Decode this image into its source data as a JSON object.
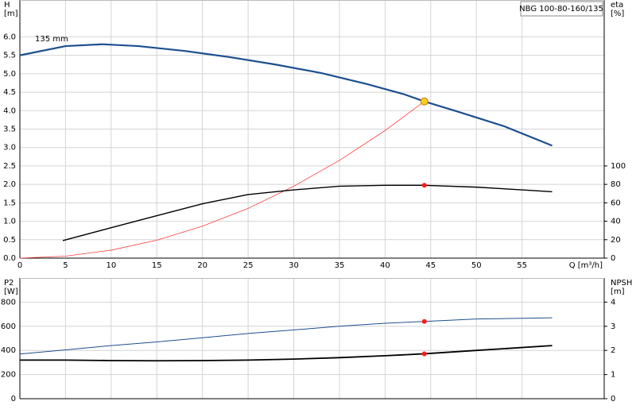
{
  "chart_data": [
    {
      "type": "line",
      "title": "NBG 100-80-160/135",
      "y_label": "H",
      "y_unit": "[m]",
      "y2_label": "eta",
      "y2_unit": "[%]",
      "x_label": "Q [m³/h]",
      "annotation": "135 mm",
      "xlim": [
        0,
        64
      ],
      "xticks": [
        0,
        5,
        10,
        15,
        20,
        25,
        30,
        35,
        40,
        45,
        50,
        55
      ],
      "ylim": [
        0,
        7
      ],
      "yticks": [
        {
          "value": 0,
          "label": "0.0"
        },
        {
          "value": 0.5,
          "label": "0.5"
        },
        {
          "value": 1,
          "label": "1.0"
        },
        {
          "value": 1.5,
          "label": "1.5"
        },
        {
          "value": 2,
          "label": "2.0"
        },
        {
          "value": 2.5,
          "label": "2.5"
        },
        {
          "value": 3,
          "label": "3.0"
        },
        {
          "value": 3.5,
          "label": "3.5"
        },
        {
          "value": 4,
          "label": "4.0"
        },
        {
          "value": 4.5,
          "label": "4.5"
        },
        {
          "value": 5,
          "label": "5.0"
        },
        {
          "value": 5.5,
          "label": "5.5"
        },
        {
          "value": 6,
          "label": "6.0"
        }
      ],
      "y2lim": [
        0,
        280
      ],
      "y2ticks": [
        0,
        20,
        40,
        60,
        80,
        100
      ],
      "grid": true,
      "series": [
        {
          "color": "#1d4f8f",
          "width": 2.2,
          "x": [
            0,
            5,
            9,
            13,
            18,
            23,
            28,
            33,
            38,
            42,
            44.3,
            48,
            53,
            58.3
          ],
          "values": [
            5.5,
            5.75,
            5.8,
            5.75,
            5.62,
            5.45,
            5.25,
            5.02,
            4.72,
            4.45,
            4.25,
            3.97,
            3.58,
            3.05
          ]
        },
        {
          "color": "#ff3b3b",
          "width": 0.8,
          "x": [
            0,
            5,
            10,
            15,
            20,
            25,
            30,
            35,
            40,
            44.3
          ],
          "values": [
            0,
            0.054,
            0.217,
            0.487,
            0.866,
            1.35,
            1.95,
            2.65,
            3.46,
            4.25
          ]
        },
        {
          "color": "#000000",
          "width": 1.4,
          "axis": "y2",
          "x": [
            4.7,
            10,
            15,
            20,
            25,
            30,
            35,
            40,
            44.3,
            50,
            55,
            58.3
          ],
          "values": [
            19,
            33,
            46,
            59,
            69,
            74,
            78,
            79,
            79,
            77,
            74,
            72
          ]
        }
      ],
      "points": [
        {
          "x": 44.3,
          "y": 4.25,
          "color": "#ffcc22"
        },
        {
          "x": 44.3,
          "y": 79,
          "color": "#ff1a1a",
          "axis": "y2"
        }
      ]
    },
    {
      "type": "line",
      "y_label": "P2",
      "y_unit": "[W]",
      "y2_label": "NPSH",
      "y2_unit": "[m]",
      "xlim": [
        0,
        64
      ],
      "xticks": [
        0,
        5,
        10,
        15,
        20,
        25,
        30,
        35,
        40,
        45,
        50,
        55
      ],
      "ylim": [
        0,
        1000
      ],
      "yticks": [
        0,
        200,
        400,
        600,
        800
      ],
      "y2lim": [
        0,
        5
      ],
      "y2ticks": [
        0,
        1,
        2,
        3,
        4
      ],
      "grid": true,
      "series": [
        {
          "color": "#1d4f8f",
          "width": 1,
          "x": [
            0,
            5,
            10,
            15,
            20,
            25,
            30,
            35,
            40,
            44.3,
            50,
            58.3
          ],
          "values": [
            370,
            405,
            440,
            470,
            505,
            540,
            570,
            600,
            625,
            640,
            660,
            670
          ]
        },
        {
          "color": "#000000",
          "width": 1.8,
          "axis": "y2",
          "x": [
            0,
            5,
            10,
            15,
            20,
            25,
            30,
            35,
            40,
            44.3,
            50,
            58.3
          ],
          "values": [
            1.6,
            1.6,
            1.58,
            1.57,
            1.58,
            1.6,
            1.64,
            1.7,
            1.78,
            1.86,
            2.0,
            2.2
          ]
        }
      ],
      "points": [
        {
          "x": 44.3,
          "y": 640,
          "color": "#ff1a1a"
        },
        {
          "x": 44.3,
          "y": 1.86,
          "color": "#ff1a1a",
          "axis": "y2"
        }
      ]
    }
  ]
}
